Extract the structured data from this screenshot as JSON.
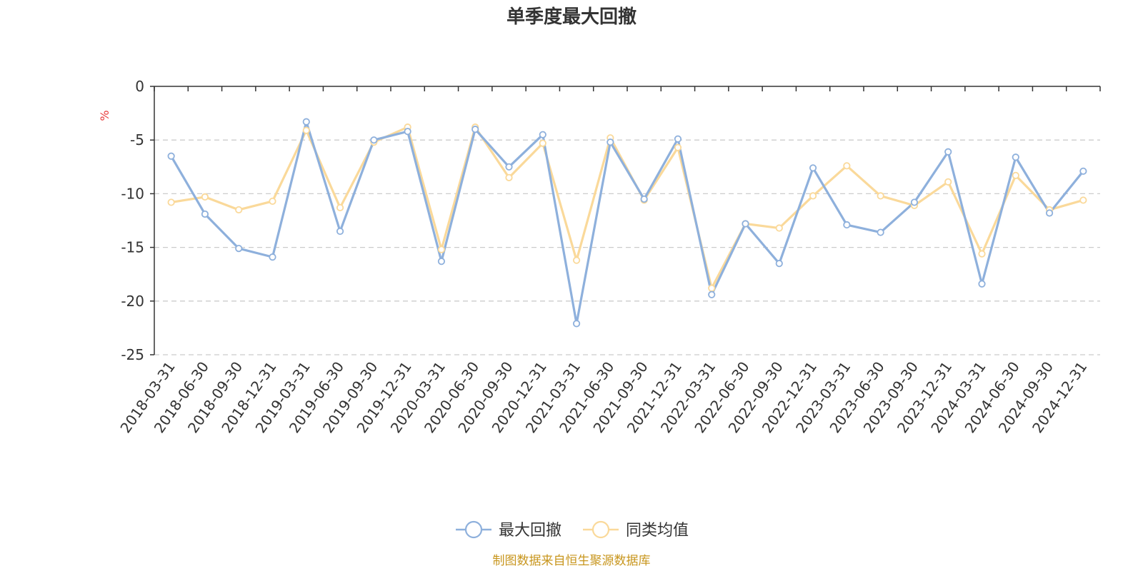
{
  "chart_data": {
    "type": "line",
    "title": "单季度最大回撤",
    "ylabel": "%",
    "ylim": [
      -25,
      0
    ],
    "yticks": [
      0,
      -5,
      -10,
      -15,
      -20,
      -25
    ],
    "grid": true,
    "legend_position": "bottom",
    "x": [
      "2018-03-31",
      "2018-06-30",
      "2018-09-30",
      "2018-12-31",
      "2019-03-31",
      "2019-06-30",
      "2019-09-30",
      "2019-12-31",
      "2020-03-31",
      "2020-06-30",
      "2020-09-30",
      "2020-12-31",
      "2021-03-31",
      "2021-06-30",
      "2021-09-30",
      "2021-12-31",
      "2022-03-31",
      "2022-06-30",
      "2022-09-30",
      "2022-12-31",
      "2023-03-31",
      "2023-06-30",
      "2023-09-30",
      "2023-12-31",
      "2024-03-31",
      "2024-06-30",
      "2024-09-30",
      "2024-12-31"
    ],
    "series": [
      {
        "name": "最大回撤",
        "color": "#8eb0dc",
        "values": [
          -6.5,
          -11.9,
          -15.1,
          -15.9,
          -3.3,
          -13.5,
          -5.0,
          -4.2,
          -16.3,
          -4.0,
          -7.5,
          -4.5,
          -22.1,
          -5.2,
          -10.5,
          -4.9,
          -19.4,
          -12.8,
          -16.5,
          -7.6,
          -12.9,
          -13.6,
          -10.8,
          -6.1,
          -18.4,
          -6.6,
          -11.8,
          -7.9
        ]
      },
      {
        "name": "同类均值",
        "color": "#fad99a",
        "values": [
          -10.8,
          -10.3,
          -11.5,
          -10.7,
          -4.1,
          -11.3,
          -5.2,
          -3.8,
          -15.2,
          -3.8,
          -8.5,
          -5.3,
          -16.2,
          -4.8,
          -10.6,
          -5.7,
          -18.8,
          -12.8,
          -13.2,
          -10.2,
          -7.4,
          -10.2,
          -11.1,
          -8.9,
          -15.6,
          -8.3,
          -11.5,
          -10.6
        ]
      }
    ],
    "source": "制图数据来自恒生聚源数据库"
  }
}
